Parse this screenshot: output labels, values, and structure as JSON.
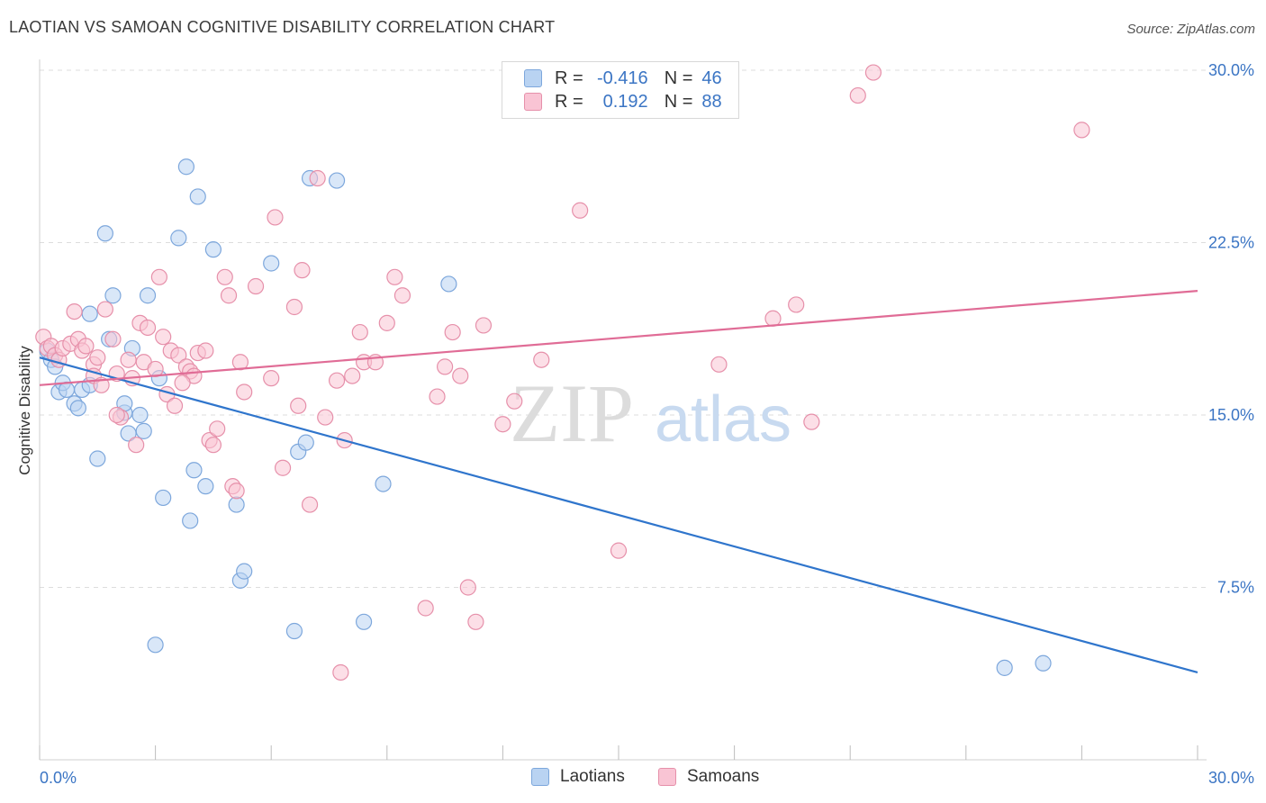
{
  "title": "LAOTIAN VS SAMOAN COGNITIVE DISABILITY CORRELATION CHART",
  "source": "Source: ZipAtlas.com",
  "watermark": {
    "zip": "ZIP",
    "atlas": "atlas"
  },
  "colors": {
    "blue_fill": "#b9d3f2",
    "blue_stroke": "#7da7dc",
    "blue_line": "#2f75cc",
    "pink_fill": "#f9c4d4",
    "pink_stroke": "#e690aa",
    "pink_line": "#e06c96",
    "tick_label": "#3b75c4",
    "grid": "#dddddd"
  },
  "legend": {
    "rows": [
      {
        "r_label": "R =",
        "r_value": "-0.416",
        "n_label": "N =",
        "n_value": "46",
        "color": "blue"
      },
      {
        "r_label": "R =",
        "r_value": "0.192",
        "n_label": "N =",
        "n_value": "88",
        "color": "pink"
      }
    ],
    "bottom": [
      "Laotians",
      "Samoans"
    ]
  },
  "chart_data": {
    "type": "scatter",
    "title": "LAOTIAN VS SAMOAN COGNITIVE DISABILITY CORRELATION CHART",
    "xlabel": "",
    "ylabel": "Cognitive Disability",
    "xlim": [
      0,
      30
    ],
    "ylim": [
      0,
      30
    ],
    "x_tick_labels": [
      "0.0%",
      "30.0%"
    ],
    "y_ticks": [
      7.5,
      15.0,
      22.5,
      30.0
    ],
    "y_tick_labels": [
      "7.5%",
      "15.0%",
      "22.5%",
      "30.0%"
    ],
    "grid": true,
    "legend_position": "top-center",
    "series": [
      {
        "name": "Laotians",
        "color": "blue",
        "trend": {
          "x": [
            0,
            30
          ],
          "y": [
            17.5,
            3.8
          ]
        },
        "points": [
          [
            0.2,
            17.8
          ],
          [
            0.3,
            17.4
          ],
          [
            0.4,
            17.1
          ],
          [
            0.5,
            16.0
          ],
          [
            0.6,
            16.4
          ],
          [
            0.7,
            16.1
          ],
          [
            0.9,
            15.5
          ],
          [
            1.0,
            15.3
          ],
          [
            1.1,
            16.1
          ],
          [
            1.3,
            16.3
          ],
          [
            1.3,
            19.4
          ],
          [
            1.5,
            13.1
          ],
          [
            1.7,
            22.9
          ],
          [
            1.8,
            18.3
          ],
          [
            1.9,
            20.2
          ],
          [
            2.2,
            15.1
          ],
          [
            2.2,
            15.5
          ],
          [
            2.3,
            14.2
          ],
          [
            2.4,
            17.9
          ],
          [
            2.6,
            15.0
          ],
          [
            2.7,
            14.3
          ],
          [
            2.8,
            20.2
          ],
          [
            3.0,
            5.0
          ],
          [
            3.1,
            16.6
          ],
          [
            3.2,
            11.4
          ],
          [
            3.6,
            22.7
          ],
          [
            3.8,
            25.8
          ],
          [
            3.9,
            10.4
          ],
          [
            4.0,
            12.6
          ],
          [
            4.1,
            24.5
          ],
          [
            4.3,
            11.9
          ],
          [
            4.5,
            22.2
          ],
          [
            5.1,
            11.1
          ],
          [
            5.2,
            7.8
          ],
          [
            5.3,
            8.2
          ],
          [
            6.0,
            21.6
          ],
          [
            6.6,
            5.6
          ],
          [
            6.7,
            13.4
          ],
          [
            6.9,
            13.8
          ],
          [
            7.0,
            25.3
          ],
          [
            7.7,
            25.2
          ],
          [
            8.4,
            6.0
          ],
          [
            8.9,
            12.0
          ],
          [
            10.6,
            20.7
          ],
          [
            25.0,
            4.0
          ],
          [
            26.0,
            4.2
          ]
        ]
      },
      {
        "name": "Samoans",
        "color": "pink",
        "trend": {
          "x": [
            0,
            30
          ],
          "y": [
            16.3,
            20.4
          ]
        },
        "points": [
          [
            0.1,
            18.4
          ],
          [
            0.2,
            17.9
          ],
          [
            0.3,
            18.0
          ],
          [
            0.4,
            17.6
          ],
          [
            0.5,
            17.4
          ],
          [
            0.6,
            17.9
          ],
          [
            0.8,
            18.1
          ],
          [
            0.9,
            19.5
          ],
          [
            1.0,
            18.3
          ],
          [
            1.1,
            17.8
          ],
          [
            1.2,
            18.0
          ],
          [
            1.4,
            17.2
          ],
          [
            1.4,
            16.7
          ],
          [
            1.5,
            17.5
          ],
          [
            1.6,
            16.3
          ],
          [
            1.7,
            19.6
          ],
          [
            1.9,
            18.3
          ],
          [
            2.0,
            16.8
          ],
          [
            2.1,
            14.9
          ],
          [
            2.3,
            17.4
          ],
          [
            2.4,
            16.6
          ],
          [
            2.5,
            13.7
          ],
          [
            2.6,
            19.0
          ],
          [
            2.7,
            17.3
          ],
          [
            2.8,
            18.8
          ],
          [
            3.0,
            17.0
          ],
          [
            3.1,
            21.0
          ],
          [
            3.2,
            18.4
          ],
          [
            3.3,
            15.9
          ],
          [
            3.4,
            17.8
          ],
          [
            3.5,
            15.4
          ],
          [
            3.6,
            17.6
          ],
          [
            3.8,
            17.1
          ],
          [
            3.9,
            16.9
          ],
          [
            4.0,
            16.7
          ],
          [
            4.1,
            17.7
          ],
          [
            4.3,
            17.8
          ],
          [
            4.4,
            13.9
          ],
          [
            4.5,
            13.7
          ],
          [
            4.6,
            14.4
          ],
          [
            4.8,
            21.0
          ],
          [
            4.9,
            20.2
          ],
          [
            5.0,
            11.9
          ],
          [
            5.1,
            11.7
          ],
          [
            5.2,
            17.3
          ],
          [
            5.3,
            16.0
          ],
          [
            5.6,
            20.6
          ],
          [
            6.0,
            16.6
          ],
          [
            6.1,
            23.6
          ],
          [
            6.3,
            12.7
          ],
          [
            6.6,
            19.7
          ],
          [
            6.7,
            15.4
          ],
          [
            6.8,
            21.3
          ],
          [
            7.0,
            11.1
          ],
          [
            7.2,
            25.3
          ],
          [
            7.4,
            14.9
          ],
          [
            7.7,
            16.5
          ],
          [
            7.8,
            3.8
          ],
          [
            7.9,
            13.9
          ],
          [
            8.1,
            16.7
          ],
          [
            8.3,
            18.6
          ],
          [
            8.4,
            17.3
          ],
          [
            8.7,
            17.3
          ],
          [
            9.0,
            19.0
          ],
          [
            9.2,
            21.0
          ],
          [
            9.4,
            20.2
          ],
          [
            10.0,
            6.6
          ],
          [
            10.3,
            15.8
          ],
          [
            10.5,
            17.1
          ],
          [
            10.7,
            18.6
          ],
          [
            10.9,
            16.7
          ],
          [
            11.1,
            7.5
          ],
          [
            11.3,
            6.0
          ],
          [
            11.5,
            18.9
          ],
          [
            12.0,
            14.6
          ],
          [
            12.3,
            15.6
          ],
          [
            13.0,
            17.4
          ],
          [
            14.0,
            23.9
          ],
          [
            15.0,
            9.1
          ],
          [
            17.6,
            17.2
          ],
          [
            19.0,
            19.2
          ],
          [
            19.6,
            19.8
          ],
          [
            20.0,
            14.7
          ],
          [
            21.2,
            28.9
          ],
          [
            21.6,
            29.9
          ],
          [
            27.0,
            27.4
          ],
          [
            2.0,
            15.0
          ],
          [
            3.7,
            16.4
          ]
        ]
      }
    ]
  }
}
